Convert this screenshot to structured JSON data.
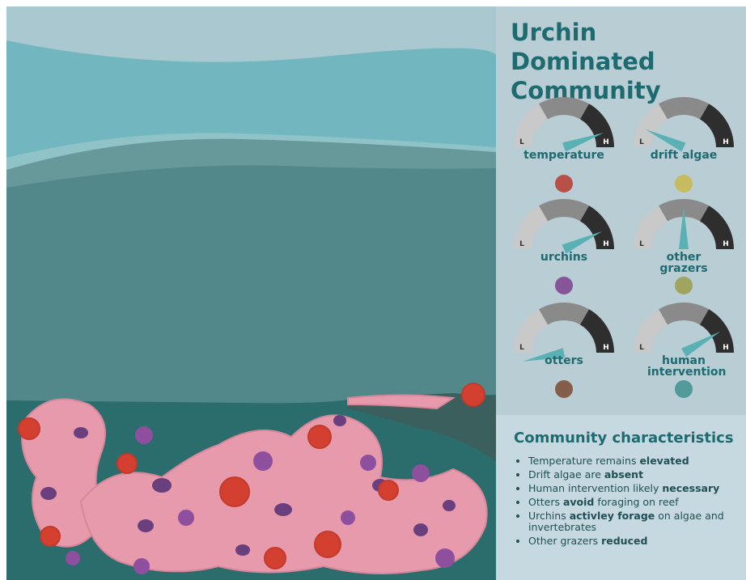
{
  "title": "Urchin Dominated Community",
  "gauges": [
    {
      "label": "temperature",
      "low": "L",
      "high": "H"
    },
    {
      "label": "drift algae",
      "low": "L",
      "high": "H"
    },
    {
      "label": "urchins",
      "low": "L",
      "high": "H"
    },
    {
      "label": "other grazers",
      "low": "L",
      "high": "H"
    },
    {
      "label": "otters",
      "low": "L",
      "high": "H"
    },
    {
      "label": "human intervention",
      "low": "L",
      "high": "H"
    }
  ],
  "characteristics": {
    "heading": "Community characteristics",
    "items": [
      {
        "parts": [
          {
            "text": "Temperature remains "
          },
          {
            "text": "elevated",
            "bold": true
          }
        ]
      },
      {
        "parts": [
          {
            "text": "Drift algae are "
          },
          {
            "text": "absent",
            "bold": true
          }
        ]
      },
      {
        "parts": [
          {
            "text": "Human intervention likely "
          },
          {
            "text": "necessary",
            "bold": true
          }
        ]
      },
      {
        "parts": [
          {
            "text": "Otters "
          },
          {
            "text": "avoid",
            "bold": true
          },
          {
            "text": " foraging on reef"
          }
        ]
      },
      {
        "parts": [
          {
            "text": "Urchins "
          },
          {
            "text": "activley forage",
            "bold": true
          },
          {
            "text": " on algae and invertebrates"
          }
        ]
      },
      {
        "parts": [
          {
            "text": "Other grazers "
          },
          {
            "text": "reduced",
            "bold": true
          }
        ]
      }
    ]
  }
}
